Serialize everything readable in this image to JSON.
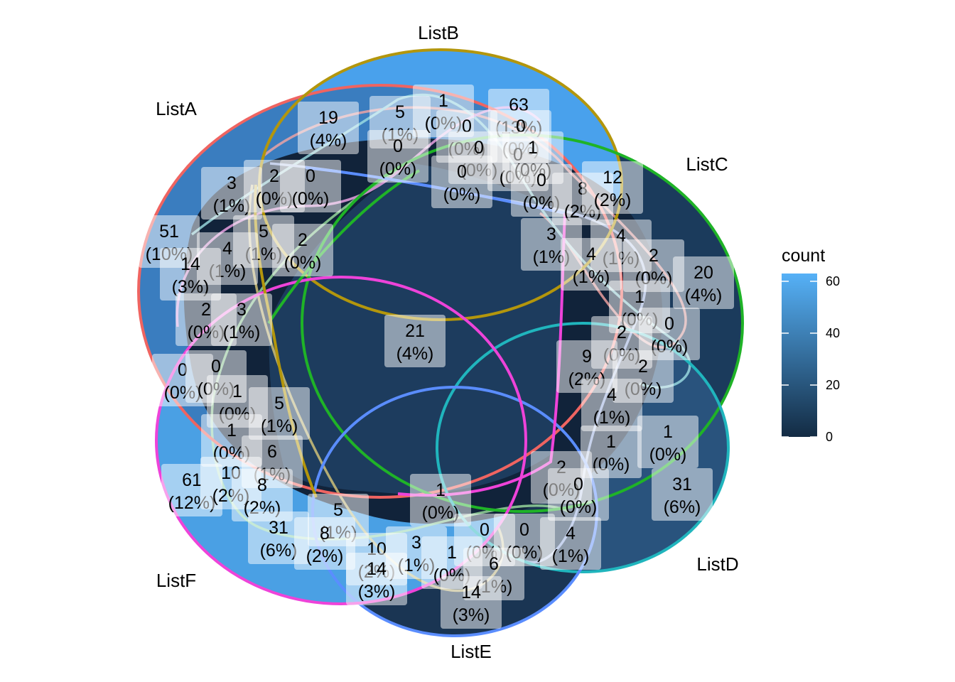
{
  "chart_data": {
    "type": "venn",
    "sets": [
      {
        "name": "ListA",
        "color": "#ef6461"
      },
      {
        "name": "ListB",
        "color": "#b3960c"
      },
      {
        "name": "ListC",
        "color": "#1fb327"
      },
      {
        "name": "ListD",
        "color": "#20b5bd"
      },
      {
        "name": "ListE",
        "color": "#5a8dff"
      },
      {
        "name": "ListF",
        "color": "#ee43d9"
      }
    ],
    "regions": [
      {
        "count": "21",
        "percent": "(4%)"
      },
      {
        "count": "51",
        "percent": "(10%)"
      },
      {
        "count": "63",
        "percent": "(13%)"
      },
      {
        "count": "20",
        "percent": "(4%)"
      },
      {
        "count": "31",
        "percent": "(6%)"
      },
      {
        "count": "61",
        "percent": "(12%)"
      },
      {
        "count": "19",
        "percent": "(4%)"
      },
      {
        "count": "5",
        "percent": "(1%)"
      },
      {
        "count": "1",
        "percent": "(0%)"
      },
      {
        "count": "0",
        "percent": "(0%)"
      },
      {
        "count": "0",
        "percent": "(0%)"
      },
      {
        "count": "0",
        "percent": "(0%)"
      },
      {
        "count": "0",
        "percent": "(0%)"
      },
      {
        "count": "0",
        "percent": "(0%)"
      },
      {
        "count": "0",
        "percent": "(0%)"
      },
      {
        "count": "1",
        "percent": "(0%)"
      },
      {
        "count": "0",
        "percent": "(0%)"
      },
      {
        "count": "3",
        "percent": "(1%)"
      },
      {
        "count": "2",
        "percent": "(0%)"
      },
      {
        "count": "0",
        "percent": "(0%)"
      },
      {
        "count": "8",
        "percent": "(2%)"
      },
      {
        "count": "12",
        "percent": "(2%)"
      },
      {
        "count": "4",
        "percent": "(1%)"
      },
      {
        "count": "5",
        "percent": "(1%)"
      },
      {
        "count": "2",
        "percent": "(0%)"
      },
      {
        "count": "3",
        "percent": "(1%)"
      },
      {
        "count": "4",
        "percent": "(1%)"
      },
      {
        "count": "2",
        "percent": "(0%)"
      },
      {
        "count": "4",
        "percent": "(1%)"
      },
      {
        "count": "14",
        "percent": "(3%)"
      },
      {
        "count": "1",
        "percent": "(0%)"
      },
      {
        "count": "2",
        "percent": "(0%)"
      },
      {
        "count": "3",
        "percent": "(1%)"
      },
      {
        "count": "0",
        "percent": "(0%)"
      },
      {
        "count": "2",
        "percent": "(0%)"
      },
      {
        "count": "9",
        "percent": "(2%)"
      },
      {
        "count": "2",
        "percent": "(0%)"
      },
      {
        "count": "0",
        "percent": "(0%)"
      },
      {
        "count": "0",
        "percent": "(0%)"
      },
      {
        "count": "1",
        "percent": "(0%)"
      },
      {
        "count": "5",
        "percent": "(1%)"
      },
      {
        "count": "4",
        "percent": "(1%)"
      },
      {
        "count": "1",
        "percent": "(0%)"
      },
      {
        "count": "1",
        "percent": "(0%)"
      },
      {
        "count": "6",
        "percent": "(1%)"
      },
      {
        "count": "1",
        "percent": "(0%)"
      },
      {
        "count": "10",
        "percent": "(2%)"
      },
      {
        "count": "8",
        "percent": "(2%)"
      },
      {
        "count": "2",
        "percent": "(0%)"
      },
      {
        "count": "0",
        "percent": "(0%)"
      },
      {
        "count": "1",
        "percent": "(0%)"
      },
      {
        "count": "31",
        "percent": "(6%)"
      },
      {
        "count": "5",
        "percent": "(1%)"
      },
      {
        "count": "8",
        "percent": "(2%)"
      },
      {
        "count": "0",
        "percent": "(0%)"
      },
      {
        "count": "0",
        "percent": "(0%)"
      },
      {
        "count": "4",
        "percent": "(1%)"
      },
      {
        "count": "10",
        "percent": "(2%)"
      },
      {
        "count": "3",
        "percent": "(1%)"
      },
      {
        "count": "1",
        "percent": "(0%)"
      },
      {
        "count": "6",
        "percent": "(1%)"
      },
      {
        "count": "14",
        "percent": "(3%)"
      },
      {
        "count": "14",
        "percent": "(3%)"
      }
    ],
    "legend": {
      "title": "count",
      "ticks": [
        "60",
        "40",
        "20",
        "0"
      ],
      "range": [
        0,
        63
      ],
      "color_low": "#132b43",
      "color_high": "#56b1f7",
      "placement": "right"
    }
  }
}
